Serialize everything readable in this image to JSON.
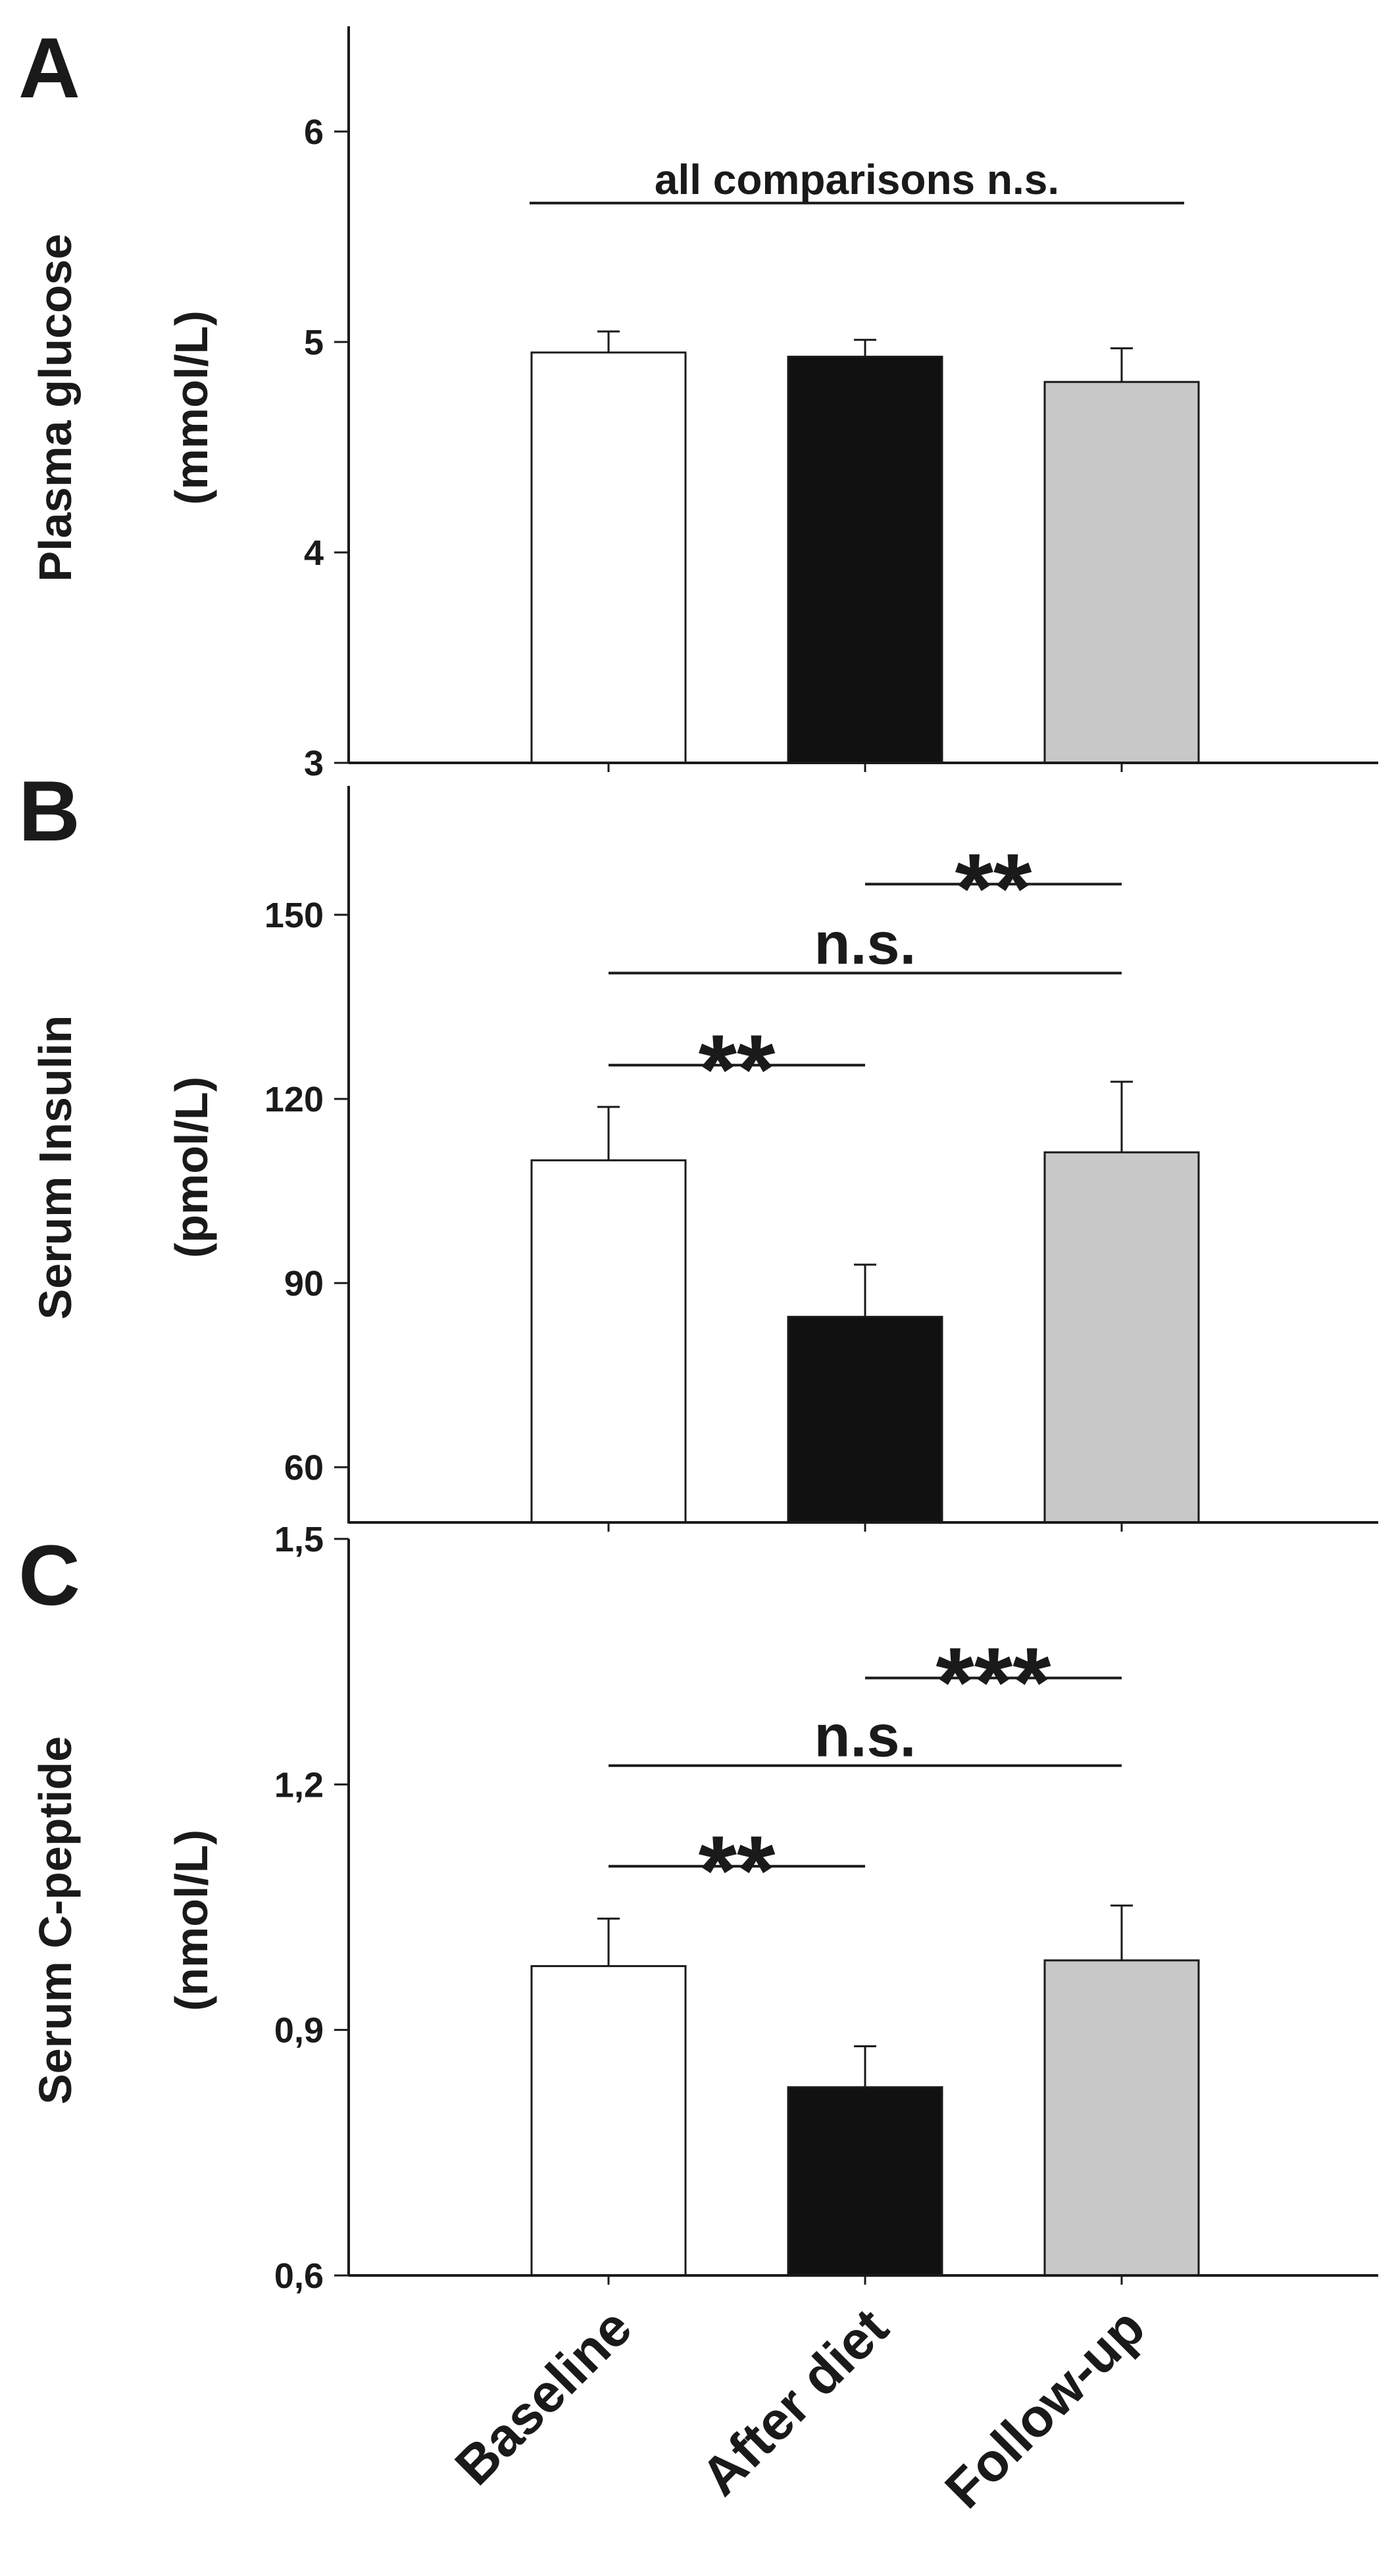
{
  "chart_data": [
    {
      "type": "bar",
      "panel_label": "A",
      "ylabel": "Plasma glucose",
      "yunit": "(mmol/L)",
      "ylim": [
        3,
        6.5
      ],
      "yticks": [
        3,
        4,
        5,
        6
      ],
      "ytick_labels": [
        "3",
        "4",
        "5",
        "6"
      ],
      "categories": [
        "Baseline",
        "After diet",
        "Follow-up"
      ],
      "values": [
        4.95,
        4.93,
        4.81
      ],
      "errors": [
        0.1,
        0.08,
        0.16
      ],
      "bar_colors": [
        "#ffffff",
        "#111111",
        "#c8c8c8"
      ],
      "annotations": [
        {
          "text": "all comparisons n.s.",
          "from": 0,
          "to": 2,
          "y": 5.66
        }
      ]
    },
    {
      "type": "bar",
      "panel_label": "B",
      "ylabel": "Serum Insulin",
      "yunit": "(pmol/L)",
      "ylim": [
        51,
        171
      ],
      "yticks": [
        60,
        90,
        120,
        150
      ],
      "ytick_labels": [
        "60",
        "90",
        "120",
        "150"
      ],
      "categories": [
        "Baseline",
        "After diet",
        "Follow-up"
      ],
      "values": [
        110,
        84.5,
        111.3
      ],
      "errors": [
        8.7,
        8.5,
        11.5
      ],
      "bar_colors": [
        "#ffffff",
        "#111111",
        "#c8c8c8"
      ],
      "annotations": [
        {
          "text": "**",
          "from": 1,
          "to": 2,
          "y": 155
        },
        {
          "text": "n.s.",
          "from": 0,
          "to": 2,
          "y": 140.5
        },
        {
          "text": "**",
          "from": 0,
          "to": 1,
          "y": 125.5
        }
      ]
    },
    {
      "type": "bar",
      "panel_label": "C",
      "ylabel": "Serum C-peptide",
      "yunit": "(nmol/L)",
      "ylim": [
        0.6,
        1.5
      ],
      "yticks": [
        0.6,
        0.9,
        1.2,
        1.5
      ],
      "ytick_labels": [
        "0,6",
        "0,9",
        "1,2",
        "1,5"
      ],
      "categories": [
        "Baseline",
        "After diet",
        "Follow-up"
      ],
      "values": [
        0.978,
        0.83,
        0.985
      ],
      "errors": [
        0.058,
        0.05,
        0.067
      ],
      "bar_colors": [
        "#ffffff",
        "#111111",
        "#c8c8c8"
      ],
      "annotations": [
        {
          "text": "***",
          "from": 1,
          "to": 2,
          "y": 1.33
        },
        {
          "text": "n.s.",
          "from": 0,
          "to": 2,
          "y": 1.223
        },
        {
          "text": "**",
          "from": 0,
          "to": 1,
          "y": 1.1
        }
      ]
    }
  ]
}
